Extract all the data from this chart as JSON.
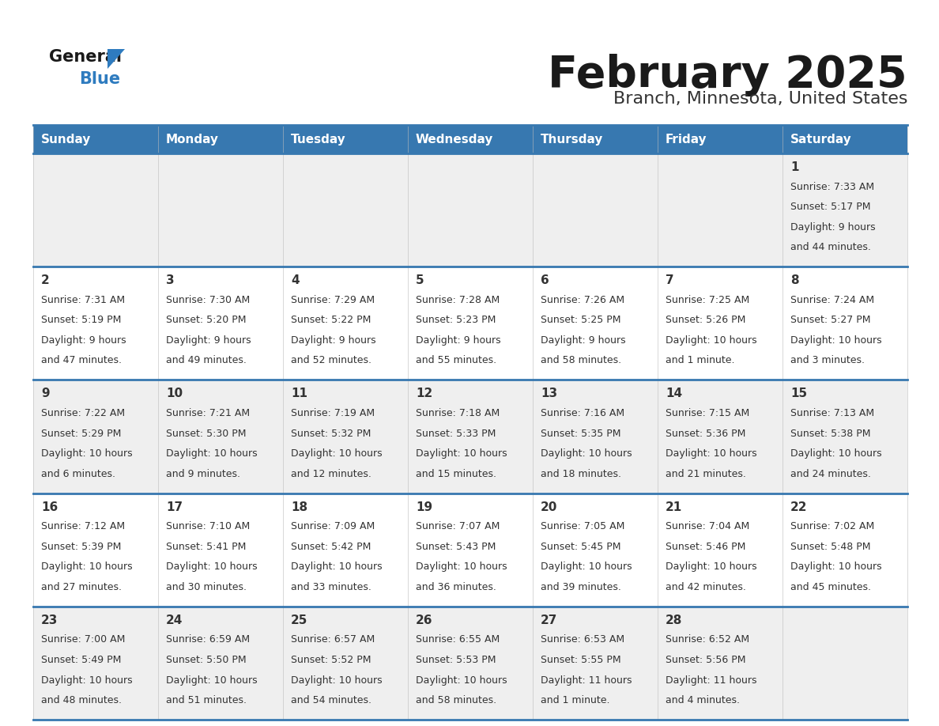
{
  "title": "February 2025",
  "subtitle": "Branch, Minnesota, United States",
  "days_of_week": [
    "Sunday",
    "Monday",
    "Tuesday",
    "Wednesday",
    "Thursday",
    "Friday",
    "Saturday"
  ],
  "header_bg": "#3778b0",
  "header_text": "#ffffff",
  "row_bg_odd": "#efefef",
  "row_bg_even": "#ffffff",
  "cell_border_color": "#3778b0",
  "day_number_color": "#333333",
  "info_text_color": "#333333",
  "logo_general_color": "#1a1a1a",
  "logo_blue_color": "#2e7bbf",
  "calendar_data": [
    [
      {
        "day": "",
        "sunrise": "",
        "sunset": "",
        "daylight": ""
      },
      {
        "day": "",
        "sunrise": "",
        "sunset": "",
        "daylight": ""
      },
      {
        "day": "",
        "sunrise": "",
        "sunset": "",
        "daylight": ""
      },
      {
        "day": "",
        "sunrise": "",
        "sunset": "",
        "daylight": ""
      },
      {
        "day": "",
        "sunrise": "",
        "sunset": "",
        "daylight": ""
      },
      {
        "day": "",
        "sunrise": "",
        "sunset": "",
        "daylight": ""
      },
      {
        "day": "1",
        "sunrise": "7:33 AM",
        "sunset": "5:17 PM",
        "daylight": "9 hours and 44 minutes."
      }
    ],
    [
      {
        "day": "2",
        "sunrise": "7:31 AM",
        "sunset": "5:19 PM",
        "daylight": "9 hours and 47 minutes."
      },
      {
        "day": "3",
        "sunrise": "7:30 AM",
        "sunset": "5:20 PM",
        "daylight": "9 hours and 49 minutes."
      },
      {
        "day": "4",
        "sunrise": "7:29 AM",
        "sunset": "5:22 PM",
        "daylight": "9 hours and 52 minutes."
      },
      {
        "day": "5",
        "sunrise": "7:28 AM",
        "sunset": "5:23 PM",
        "daylight": "9 hours and 55 minutes."
      },
      {
        "day": "6",
        "sunrise": "7:26 AM",
        "sunset": "5:25 PM",
        "daylight": "9 hours and 58 minutes."
      },
      {
        "day": "7",
        "sunrise": "7:25 AM",
        "sunset": "5:26 PM",
        "daylight": "10 hours and 1 minute."
      },
      {
        "day": "8",
        "sunrise": "7:24 AM",
        "sunset": "5:27 PM",
        "daylight": "10 hours and 3 minutes."
      }
    ],
    [
      {
        "day": "9",
        "sunrise": "7:22 AM",
        "sunset": "5:29 PM",
        "daylight": "10 hours and 6 minutes."
      },
      {
        "day": "10",
        "sunrise": "7:21 AM",
        "sunset": "5:30 PM",
        "daylight": "10 hours and 9 minutes."
      },
      {
        "day": "11",
        "sunrise": "7:19 AM",
        "sunset": "5:32 PM",
        "daylight": "10 hours and 12 minutes."
      },
      {
        "day": "12",
        "sunrise": "7:18 AM",
        "sunset": "5:33 PM",
        "daylight": "10 hours and 15 minutes."
      },
      {
        "day": "13",
        "sunrise": "7:16 AM",
        "sunset": "5:35 PM",
        "daylight": "10 hours and 18 minutes."
      },
      {
        "day": "14",
        "sunrise": "7:15 AM",
        "sunset": "5:36 PM",
        "daylight": "10 hours and 21 minutes."
      },
      {
        "day": "15",
        "sunrise": "7:13 AM",
        "sunset": "5:38 PM",
        "daylight": "10 hours and 24 minutes."
      }
    ],
    [
      {
        "day": "16",
        "sunrise": "7:12 AM",
        "sunset": "5:39 PM",
        "daylight": "10 hours and 27 minutes."
      },
      {
        "day": "17",
        "sunrise": "7:10 AM",
        "sunset": "5:41 PM",
        "daylight": "10 hours and 30 minutes."
      },
      {
        "day": "18",
        "sunrise": "7:09 AM",
        "sunset": "5:42 PM",
        "daylight": "10 hours and 33 minutes."
      },
      {
        "day": "19",
        "sunrise": "7:07 AM",
        "sunset": "5:43 PM",
        "daylight": "10 hours and 36 minutes."
      },
      {
        "day": "20",
        "sunrise": "7:05 AM",
        "sunset": "5:45 PM",
        "daylight": "10 hours and 39 minutes."
      },
      {
        "day": "21",
        "sunrise": "7:04 AM",
        "sunset": "5:46 PM",
        "daylight": "10 hours and 42 minutes."
      },
      {
        "day": "22",
        "sunrise": "7:02 AM",
        "sunset": "5:48 PM",
        "daylight": "10 hours and 45 minutes."
      }
    ],
    [
      {
        "day": "23",
        "sunrise": "7:00 AM",
        "sunset": "5:49 PM",
        "daylight": "10 hours and 48 minutes."
      },
      {
        "day": "24",
        "sunrise": "6:59 AM",
        "sunset": "5:50 PM",
        "daylight": "10 hours and 51 minutes."
      },
      {
        "day": "25",
        "sunrise": "6:57 AM",
        "sunset": "5:52 PM",
        "daylight": "10 hours and 54 minutes."
      },
      {
        "day": "26",
        "sunrise": "6:55 AM",
        "sunset": "5:53 PM",
        "daylight": "10 hours and 58 minutes."
      },
      {
        "day": "27",
        "sunrise": "6:53 AM",
        "sunset": "5:55 PM",
        "daylight": "11 hours and 1 minute."
      },
      {
        "day": "28",
        "sunrise": "6:52 AM",
        "sunset": "5:56 PM",
        "daylight": "11 hours and 4 minutes."
      },
      {
        "day": "",
        "sunrise": "",
        "sunset": "",
        "daylight": ""
      }
    ]
  ]
}
